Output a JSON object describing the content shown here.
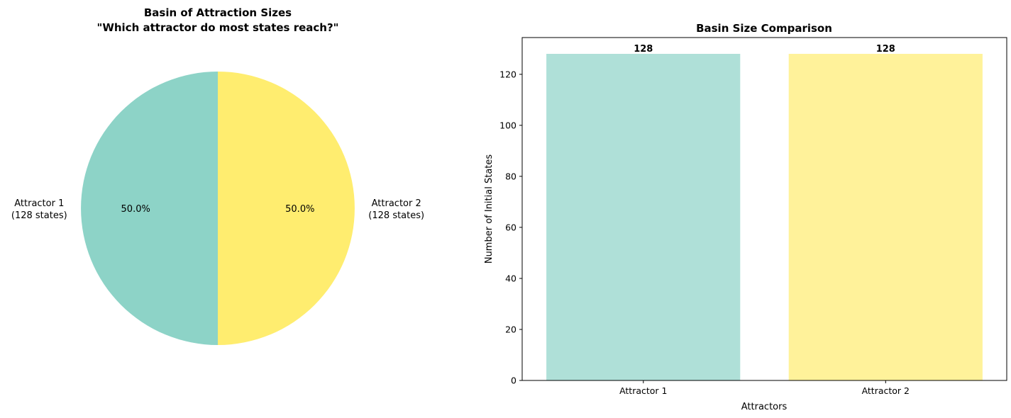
{
  "chart_data": [
    {
      "type": "pie",
      "title_line1": "Basin of Attraction Sizes",
      "title_line2": "\"Which attractor do most states reach?\"",
      "slices": [
        {
          "label_line1": "Attractor 1",
          "label_line2": "(128 states)",
          "value": 128,
          "pct_label": "50.0%",
          "color": "#8dd3c7"
        },
        {
          "label_line1": "Attractor 2",
          "label_line2": "(128 states)",
          "value": 128,
          "pct_label": "50.0%",
          "color": "#ffed6f"
        }
      ]
    },
    {
      "type": "bar",
      "title": "Basin Size Comparison",
      "xlabel": "Attractors",
      "ylabel": "Number of Initial States",
      "categories": [
        "Attractor 1",
        "Attractor 2"
      ],
      "values": [
        128,
        128
      ],
      "value_labels": [
        "128",
        "128"
      ],
      "colors": [
        "#8dd3c7",
        "#ffed6f"
      ],
      "bar_opacity": 0.7,
      "ylim": [
        0,
        134.4
      ],
      "yticks": [
        0,
        20,
        40,
        60,
        80,
        100,
        120
      ],
      "grid": false
    }
  ]
}
